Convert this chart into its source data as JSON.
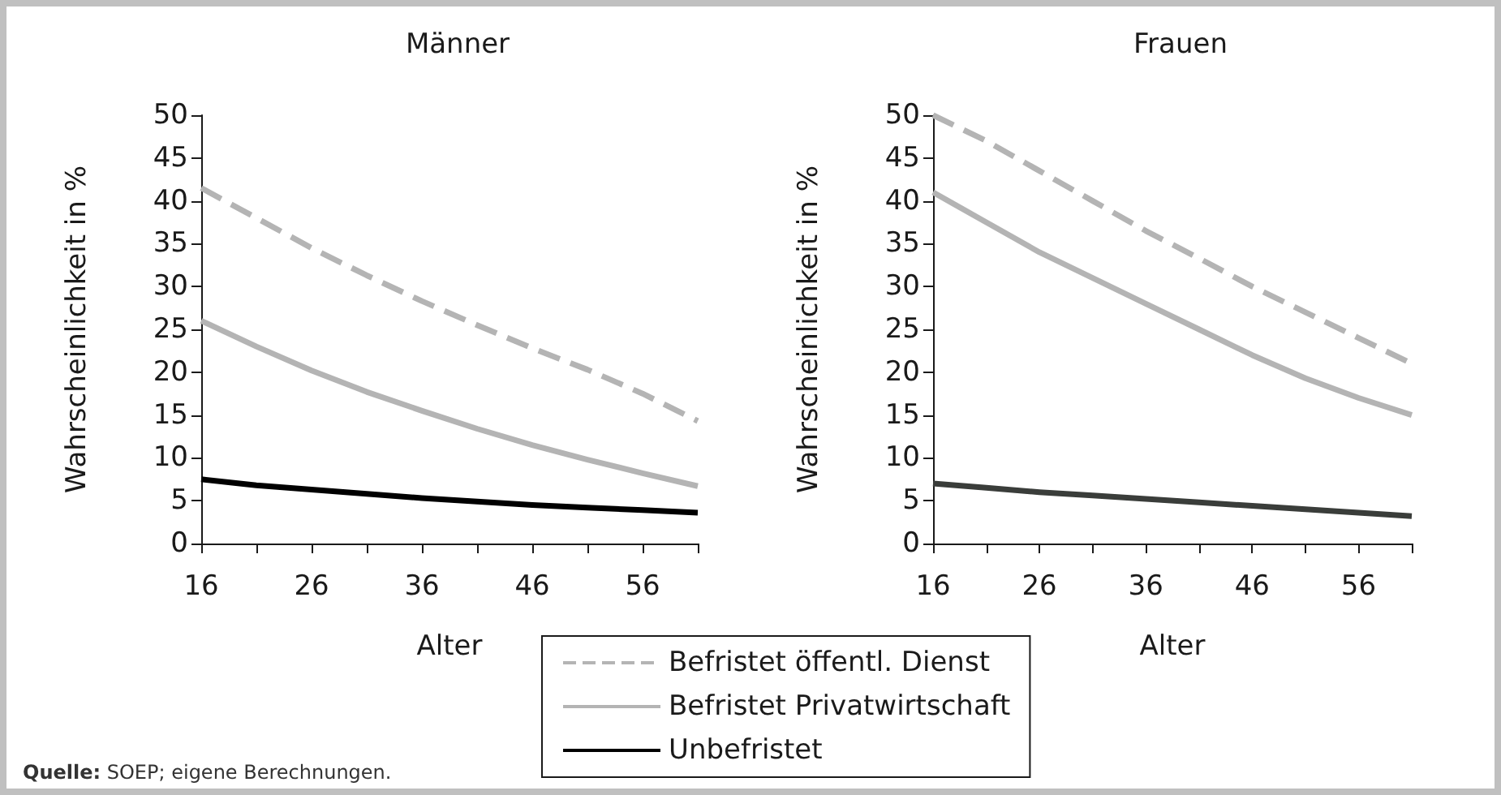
{
  "chart_data": [
    {
      "type": "line",
      "title": "Männer",
      "xlabel": "Alter",
      "ylabel": "Wahrscheinlichkeit in %",
      "x": [
        16,
        21,
        26,
        31,
        36,
        41,
        46,
        51,
        56,
        61
      ],
      "xlim": [
        16,
        61
      ],
      "xticks": [
        16,
        {
          "value": 21,
          "label": null
        },
        26,
        {
          "value": 31,
          "label": null
        },
        36,
        {
          "value": 41,
          "label": null
        },
        46,
        {
          "value": 51,
          "label": null
        },
        56,
        {
          "value": 61,
          "label": null
        }
      ],
      "ylim": [
        0,
        50
      ],
      "yticks": [
        0,
        5,
        10,
        15,
        20,
        25,
        30,
        35,
        40,
        45,
        50
      ],
      "marker": "none",
      "legend": "bottom",
      "annotations": [
        "**Quelle:** SOEP; eigene Berechnungen."
      ],
      "series": [
        {
          "name": "Befristet öffentl. Dienst",
          "color": "#b4b4b4",
          "line_style": "dashed",
          "values": [
            41.5,
            38,
            34.5,
            31.3,
            28.3,
            25.5,
            22.8,
            20.3,
            17.5,
            14.3
          ]
        },
        {
          "name": "Befristet Privatwirtschaft",
          "color": "#b4b4b4",
          "line_style": "solid",
          "values": [
            26,
            23,
            20.2,
            17.7,
            15.5,
            13.4,
            11.5,
            9.8,
            8.2,
            6.7
          ]
        },
        {
          "name": "Unbefristet",
          "color": "#000000",
          "line_style": "solid",
          "values": [
            7.5,
            6.8,
            6.3,
            5.8,
            5.3,
            4.9,
            4.5,
            4.2,
            3.9,
            3.6
          ]
        }
      ]
    },
    {
      "type": "line",
      "title": "Frauen",
      "xlabel": "Alter",
      "ylabel": "Wahrscheinlichkeit in %",
      "x": [
        16,
        21,
        26,
        31,
        36,
        41,
        46,
        51,
        56,
        61
      ],
      "xlim": [
        16,
        61
      ],
      "xticks": [
        16,
        {
          "value": 21,
          "label": null
        },
        26,
        {
          "value": 31,
          "label": null
        },
        36,
        {
          "value": 41,
          "label": null
        },
        46,
        {
          "value": 51,
          "label": null
        },
        56,
        {
          "value": 61,
          "label": null
        }
      ],
      "ylim": [
        0,
        50
      ],
      "yticks": [
        0,
        5,
        10,
        15,
        20,
        25,
        30,
        35,
        40,
        45,
        50
      ],
      "marker": "none",
      "series": [
        {
          "color": "#b4b4b4",
          "line_style": "dashed",
          "values": [
            50,
            47,
            43.5,
            40,
            36.5,
            33.3,
            30,
            27,
            24,
            21
          ]
        },
        {
          "color": "#b4b4b4",
          "line_style": "solid",
          "values": [
            41,
            37.5,
            34,
            31,
            28,
            25,
            22,
            19.3,
            17,
            15
          ]
        },
        {
          "color": "#3a3d3a",
          "line_style": "solid",
          "values": [
            7,
            6.5,
            6,
            5.6,
            5.2,
            4.8,
            4.4,
            4,
            3.6,
            3.2
          ]
        }
      ]
    }
  ]
}
